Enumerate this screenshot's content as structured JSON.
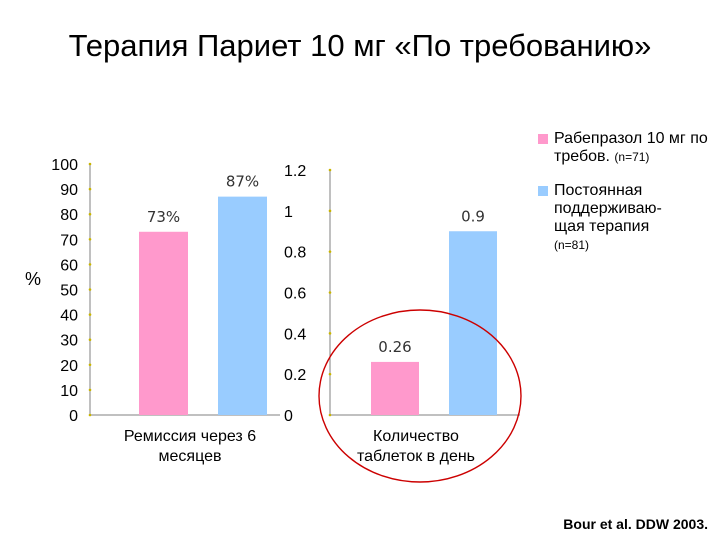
{
  "title": "Терапия Париет 10 мг «По требованию»",
  "colors": {
    "rabeprazole": "#ff99cc",
    "maintenance": "#99ccff",
    "circle": "#cc0000",
    "axis": "#808080",
    "tick_dot": "#c8b400"
  },
  "legend": {
    "items": [
      {
        "label": "Рабепразол 10 мг по требов.",
        "n": "(n=71)"
      },
      {
        "label": "Постоянная поддерживаю-щая терапия",
        "n": "(n=81)"
      }
    ]
  },
  "source": "Bour et al. DDW 2003.",
  "chart_data": [
    {
      "type": "bar",
      "ylabel": "%",
      "ylim": [
        0,
        100
      ],
      "yticks": [
        "100",
        "90",
        "80",
        "70",
        "60",
        "50",
        "40",
        "30",
        "20",
        "10",
        "0"
      ],
      "category": "Ремиссия через 6 месяцев",
      "series": [
        {
          "name": "Рабепразол 10 мг по требов.",
          "value": 73,
          "label": "73%"
        },
        {
          "name": "Постоянная поддерживаю-щая терапия",
          "value": 87,
          "label": "87%"
        }
      ]
    },
    {
      "type": "bar",
      "ylim": [
        0,
        1.2
      ],
      "yticks": [
        "1.2",
        "1",
        "0.8",
        "0.6",
        "0.4",
        "0.2",
        "0"
      ],
      "category": "Количество таблеток в день",
      "series": [
        {
          "name": "Рабепразол 10 мг по требов.",
          "value": 0.26,
          "label": "0.26"
        },
        {
          "name": "Постоянная поддерживаю-щая терапия",
          "value": 0.9,
          "label": "0.9"
        }
      ]
    }
  ]
}
